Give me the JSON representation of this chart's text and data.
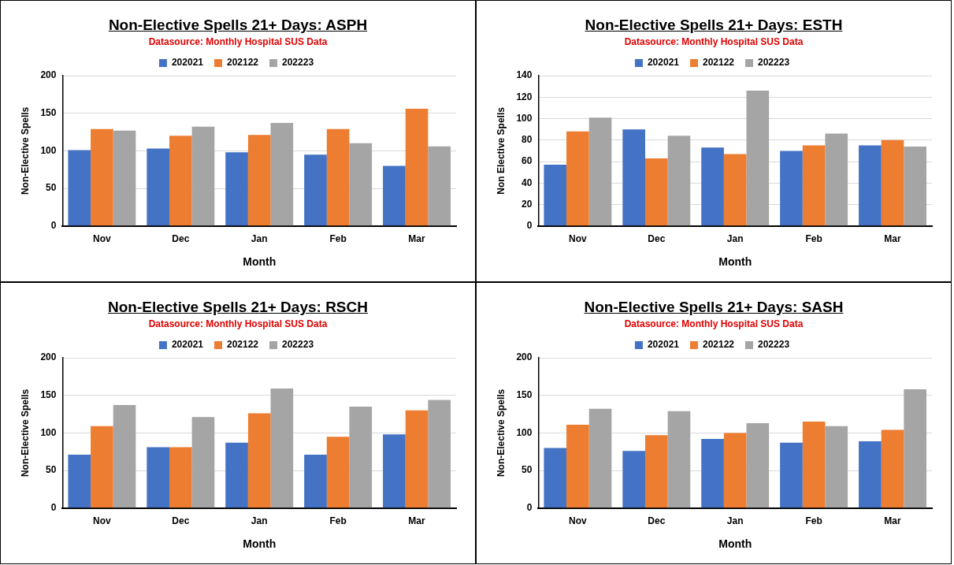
{
  "chart_data": [
    {
      "type": "bar",
      "title": "Non-Elective Spells 21+ Days: ASPH",
      "subtitle": "Datasource: Monthly Hospital SUS Data",
      "xlabel": "Month",
      "ylabel": "Non-Elective Spells",
      "categories": [
        "Nov",
        "Dec",
        "Jan",
        "Feb",
        "Mar"
      ],
      "ylim": [
        0,
        200
      ],
      "yticks": [
        0,
        50,
        100,
        150,
        200
      ],
      "grid": "y",
      "legend": "top",
      "series": [
        {
          "name": "202021",
          "color": "#4472c4",
          "values": [
            101,
            103,
            98,
            95,
            80
          ]
        },
        {
          "name": "202122",
          "color": "#ed7d31",
          "values": [
            129,
            120,
            121,
            129,
            156
          ]
        },
        {
          "name": "202223",
          "color": "#a5a5a5",
          "values": [
            127,
            132,
            137,
            110,
            106
          ]
        }
      ]
    },
    {
      "type": "bar",
      "title": "Non-Elective Spells 21+ Days: ESTH",
      "subtitle": "Datasource: Monthly Hospital SUS Data",
      "xlabel": "Month",
      "ylabel": "Non Elective Spells",
      "categories": [
        "Nov",
        "Dec",
        "Jan",
        "Feb",
        "Mar"
      ],
      "ylim": [
        0,
        140
      ],
      "yticks": [
        0,
        20,
        40,
        60,
        80,
        100,
        120,
        140
      ],
      "grid": "y",
      "legend": "top",
      "series": [
        {
          "name": "202021",
          "color": "#4472c4",
          "values": [
            57,
            90,
            73,
            70,
            75
          ]
        },
        {
          "name": "202122",
          "color": "#ed7d31",
          "values": [
            88,
            63,
            67,
            75,
            80
          ]
        },
        {
          "name": "202223",
          "color": "#a5a5a5",
          "values": [
            101,
            84,
            126,
            86,
            74
          ]
        }
      ]
    },
    {
      "type": "bar",
      "title": "Non-Elective Spells 21+ Days: RSCH",
      "subtitle": "Datasource: Monthly Hospital SUS Data",
      "xlabel": "Month",
      "ylabel": "Non-Elective Spells",
      "categories": [
        "Nov",
        "Dec",
        "Jan",
        "Feb",
        "Mar"
      ],
      "ylim": [
        0,
        200
      ],
      "yticks": [
        0,
        50,
        100,
        150,
        200
      ],
      "grid": "y",
      "legend": "top",
      "series": [
        {
          "name": "202021",
          "color": "#4472c4",
          "values": [
            71,
            81,
            87,
            71,
            98
          ]
        },
        {
          "name": "202122",
          "color": "#ed7d31",
          "values": [
            109,
            81,
            126,
            95,
            130
          ]
        },
        {
          "name": "202223",
          "color": "#a5a5a5",
          "values": [
            137,
            121,
            159,
            135,
            144
          ]
        }
      ]
    },
    {
      "type": "bar",
      "title": "Non-Elective Spells 21+ Days: SASH",
      "subtitle": "Datasource: Monthly Hospital SUS Data",
      "xlabel": "Month",
      "ylabel": "Non-Elective Spells",
      "categories": [
        "Nov",
        "Dec",
        "Jan",
        "Feb",
        "Mar"
      ],
      "ylim": [
        0,
        200
      ],
      "yticks": [
        0,
        50,
        100,
        150,
        200
      ],
      "grid": "y",
      "legend": "top",
      "series": [
        {
          "name": "202021",
          "color": "#4472c4",
          "values": [
            80,
            76,
            92,
            87,
            89
          ]
        },
        {
          "name": "202122",
          "color": "#ed7d31",
          "values": [
            111,
            97,
            100,
            115,
            104
          ]
        },
        {
          "name": "202223",
          "color": "#a5a5a5",
          "values": [
            132,
            129,
            113,
            109,
            158
          ]
        }
      ]
    }
  ]
}
